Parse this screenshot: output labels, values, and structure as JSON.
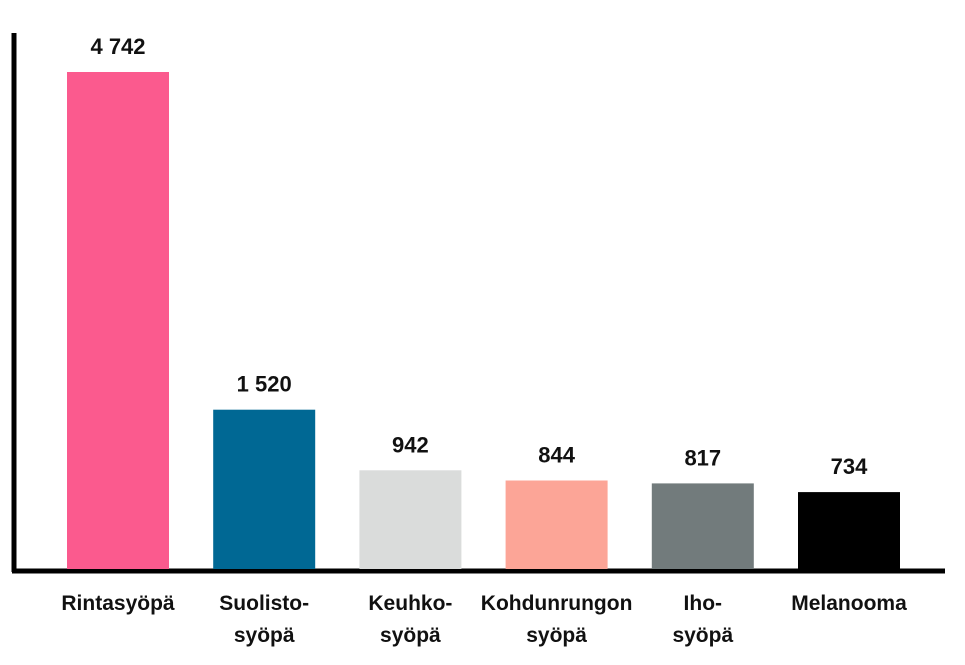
{
  "chart_data": {
    "type": "bar",
    "title": "",
    "xlabel": "",
    "ylabel": "",
    "ylim": [
      0,
      5000
    ],
    "grid": false,
    "legend": "none",
    "categories": [
      [
        "Rintasyöpä"
      ],
      [
        "Suolisto-",
        "syöpä"
      ],
      [
        "Keuhko-",
        "syöpä"
      ],
      [
        "Kohdunrungon",
        "syöpä"
      ],
      [
        "Iho-",
        "syöpä"
      ],
      [
        "Melanooma"
      ]
    ],
    "values": [
      4742,
      1520,
      942,
      844,
      817,
      734
    ],
    "value_labels": [
      "4 742",
      "1 520",
      "942",
      "844",
      "817",
      "734"
    ],
    "colors": [
      "#fb5a8e",
      "#006894",
      "#dadcdb",
      "#fca597",
      "#727b7c",
      "#000000"
    ]
  }
}
